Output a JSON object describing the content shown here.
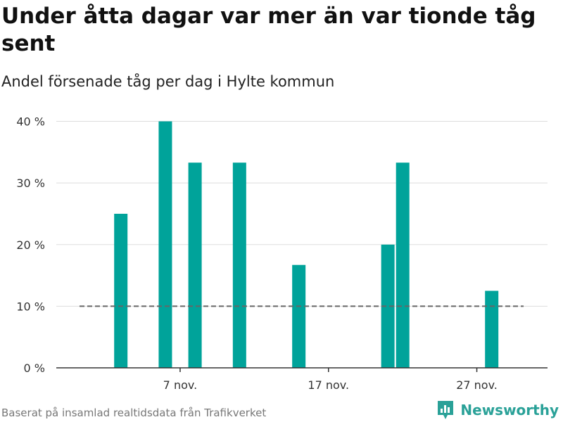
{
  "title": "Under åtta dagar var mer än var tionde tåg sent",
  "subtitle": "Andel försenade tåg per dag i Hylte kommun",
  "footer": "Baserat på insamlad realtidsdata från Trafikverket",
  "brand": {
    "name": "Newsworthy",
    "icon": "newsworthy-logo-icon",
    "color": "#2aa198"
  },
  "colors": {
    "bar": "#00a39a",
    "grid": "#dddddd",
    "axis": "#333333",
    "reference": "#666666"
  },
  "chart_data": {
    "type": "bar",
    "x_unit": "day (november)",
    "xlim": [
      1,
      30
    ],
    "ylim": [
      0,
      42
    ],
    "y_ticks": [
      0,
      10,
      20,
      30,
      40
    ],
    "y_tick_labels": [
      "0 %",
      "10 %",
      "20 %",
      "30 %",
      "40 %"
    ],
    "x_ticks": [
      7,
      17,
      27
    ],
    "x_tick_labels": [
      "7 nov.",
      "17 nov.",
      "27 nov."
    ],
    "grid": true,
    "reference_line": {
      "value": 10,
      "style": "dashed"
    },
    "bars": [
      {
        "day": 4,
        "value": 25
      },
      {
        "day": 7,
        "value": 40
      },
      {
        "day": 9,
        "value": 33.3
      },
      {
        "day": 12,
        "value": 33.3
      },
      {
        "day": 16,
        "value": 16.7
      },
      {
        "day": 22,
        "value": 20
      },
      {
        "day": 23,
        "value": 33.3
      },
      {
        "day": 29,
        "value": 12.5
      }
    ]
  }
}
